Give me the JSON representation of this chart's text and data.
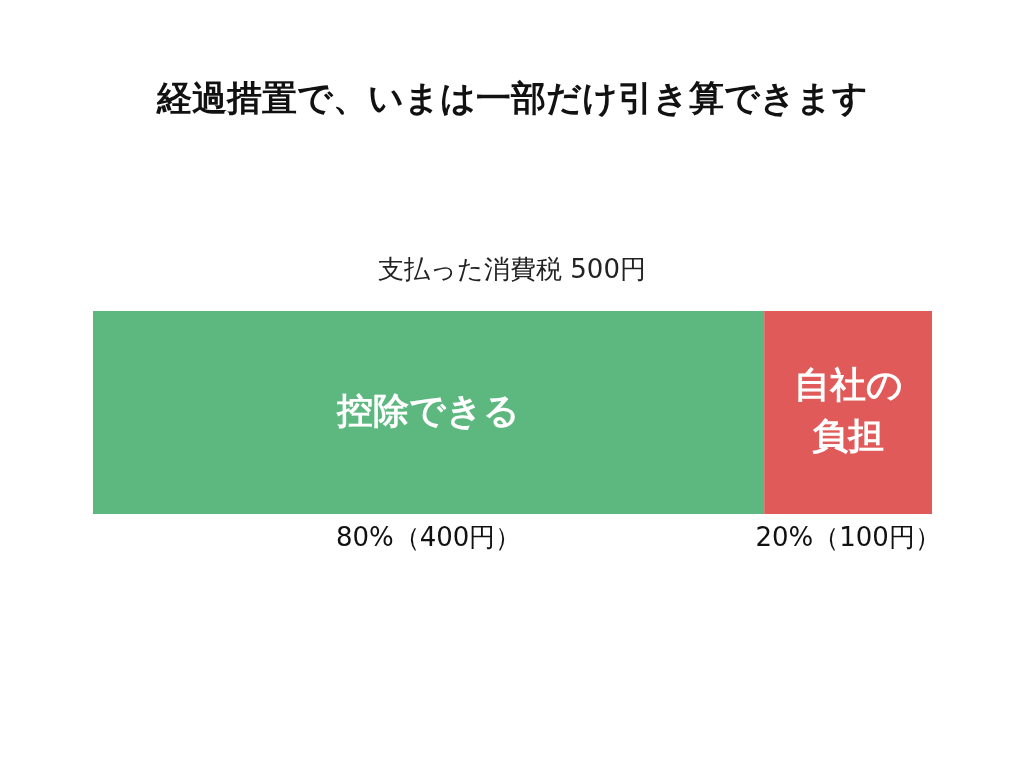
{
  "chart_data": {
    "type": "bar",
    "title": "経過措置で、いまは一部だけ引き算できます",
    "subtitle": "支払った消費税 500円",
    "orientation": "horizontal",
    "stacked": true,
    "legend": false,
    "categories": [
      null
    ],
    "series": [
      {
        "name": "控除できる",
        "color": "#5cb87e",
        "values": [
          400
        ],
        "value_labels": [
          "80%（400円）"
        ]
      },
      {
        "name": "自社の負担",
        "color": "#e05a5a",
        "values": [
          100
        ],
        "value_labels": [
          "20%（100円）"
        ]
      }
    ]
  }
}
